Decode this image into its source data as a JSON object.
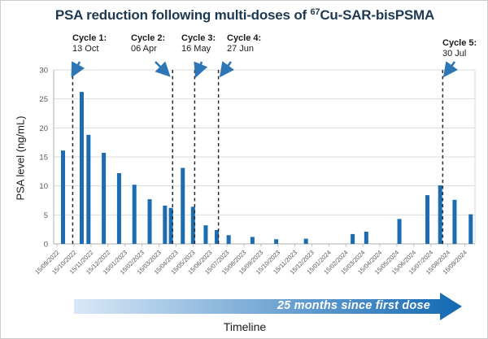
{
  "title": {
    "prefix": "PSA reduction following multi-doses of ",
    "isotope_superscript": "67",
    "suffix": "Cu-SAR-bisPSMA"
  },
  "y_axis": {
    "label": "PSA level (ng/mL)"
  },
  "x_axis": {
    "label": "Timeline"
  },
  "banner": {
    "text": "25 months since first dose"
  },
  "chart_data": {
    "type": "bar",
    "title": "PSA reduction following multi-doses of 67Cu-SAR-bisPSMA",
    "ylabel": "PSA level (ng/mL)",
    "xlabel": "Timeline",
    "ylim": [
      0,
      30
    ],
    "yticks": [
      0,
      5,
      10,
      15,
      20,
      25,
      30
    ],
    "grid": true,
    "legend": false,
    "x_axis_unit": "months since 15/09/2022 (monthly ticks)",
    "xtick_labels": [
      "15/09/2022",
      "15/10/2022",
      "15/11/2022",
      "15/12/2022",
      "15/01/2023",
      "15/02/2023",
      "15/03/2023",
      "15/04/2023",
      "15/05/2023",
      "15/06/2023",
      "15/07/2023",
      "15/08/2023",
      "15/09/2023",
      "15/10/2023",
      "15/11/2023",
      "15/12/2023",
      "15/01/2024",
      "15/02/2024",
      "15/03/2024",
      "15/04/2024",
      "15/05/2024",
      "15/06/2024",
      "15/07/2024",
      "15/08/2024",
      "15/09/2024"
    ],
    "bars": [
      {
        "t": 0.35,
        "psa": 16.1
      },
      {
        "t": 1.45,
        "psa": 26.2
      },
      {
        "t": 1.85,
        "psa": 18.8
      },
      {
        "t": 2.75,
        "psa": 15.7
      },
      {
        "t": 3.65,
        "psa": 12.2
      },
      {
        "t": 4.55,
        "psa": 10.2
      },
      {
        "t": 5.45,
        "psa": 7.7
      },
      {
        "t": 6.35,
        "psa": 6.6
      },
      {
        "t": 6.7,
        "psa": 6.2
      },
      {
        "t": 7.4,
        "psa": 13.1
      },
      {
        "t": 8.0,
        "psa": 6.4
      },
      {
        "t": 8.75,
        "psa": 3.2
      },
      {
        "t": 9.4,
        "psa": 2.4
      },
      {
        "t": 10.1,
        "psa": 1.5
      },
      {
        "t": 11.5,
        "psa": 1.2
      },
      {
        "t": 12.9,
        "psa": 0.8
      },
      {
        "t": 14.65,
        "psa": 0.9
      },
      {
        "t": 17.4,
        "psa": 1.7
      },
      {
        "t": 18.2,
        "psa": 2.1
      },
      {
        "t": 20.15,
        "psa": 4.3
      },
      {
        "t": 21.8,
        "psa": 8.4
      },
      {
        "t": 22.55,
        "psa": 10.1
      },
      {
        "t": 23.4,
        "psa": 7.6
      },
      {
        "t": 24.35,
        "psa": 5.1
      }
    ],
    "cycle_markers": [
      {
        "label": "Cycle 1:",
        "date": "13 Oct",
        "t": 0.92
      },
      {
        "label": "Cycle 2:",
        "date": "06 Apr",
        "t": 6.8
      },
      {
        "label": "Cycle 3:",
        "date": "16 May",
        "t": 8.1
      },
      {
        "label": "Cycle 4:",
        "date": "27 Jun",
        "t": 9.5
      },
      {
        "label": "Cycle 5:",
        "date": "30 Jul",
        "t": 22.7
      }
    ]
  },
  "colors": {
    "title": "#1E3A52",
    "bar": "#1B6CB0",
    "axis_text": "#595959",
    "gridline": "#DBDBDB",
    "axis_line": "#BFBFBF",
    "dashed_line": "#2B2B2B",
    "cycle_arrow": "#2E75B6",
    "banner_gradient_start": "#D9E8F7",
    "banner_gradient_end": "#1268B3"
  }
}
